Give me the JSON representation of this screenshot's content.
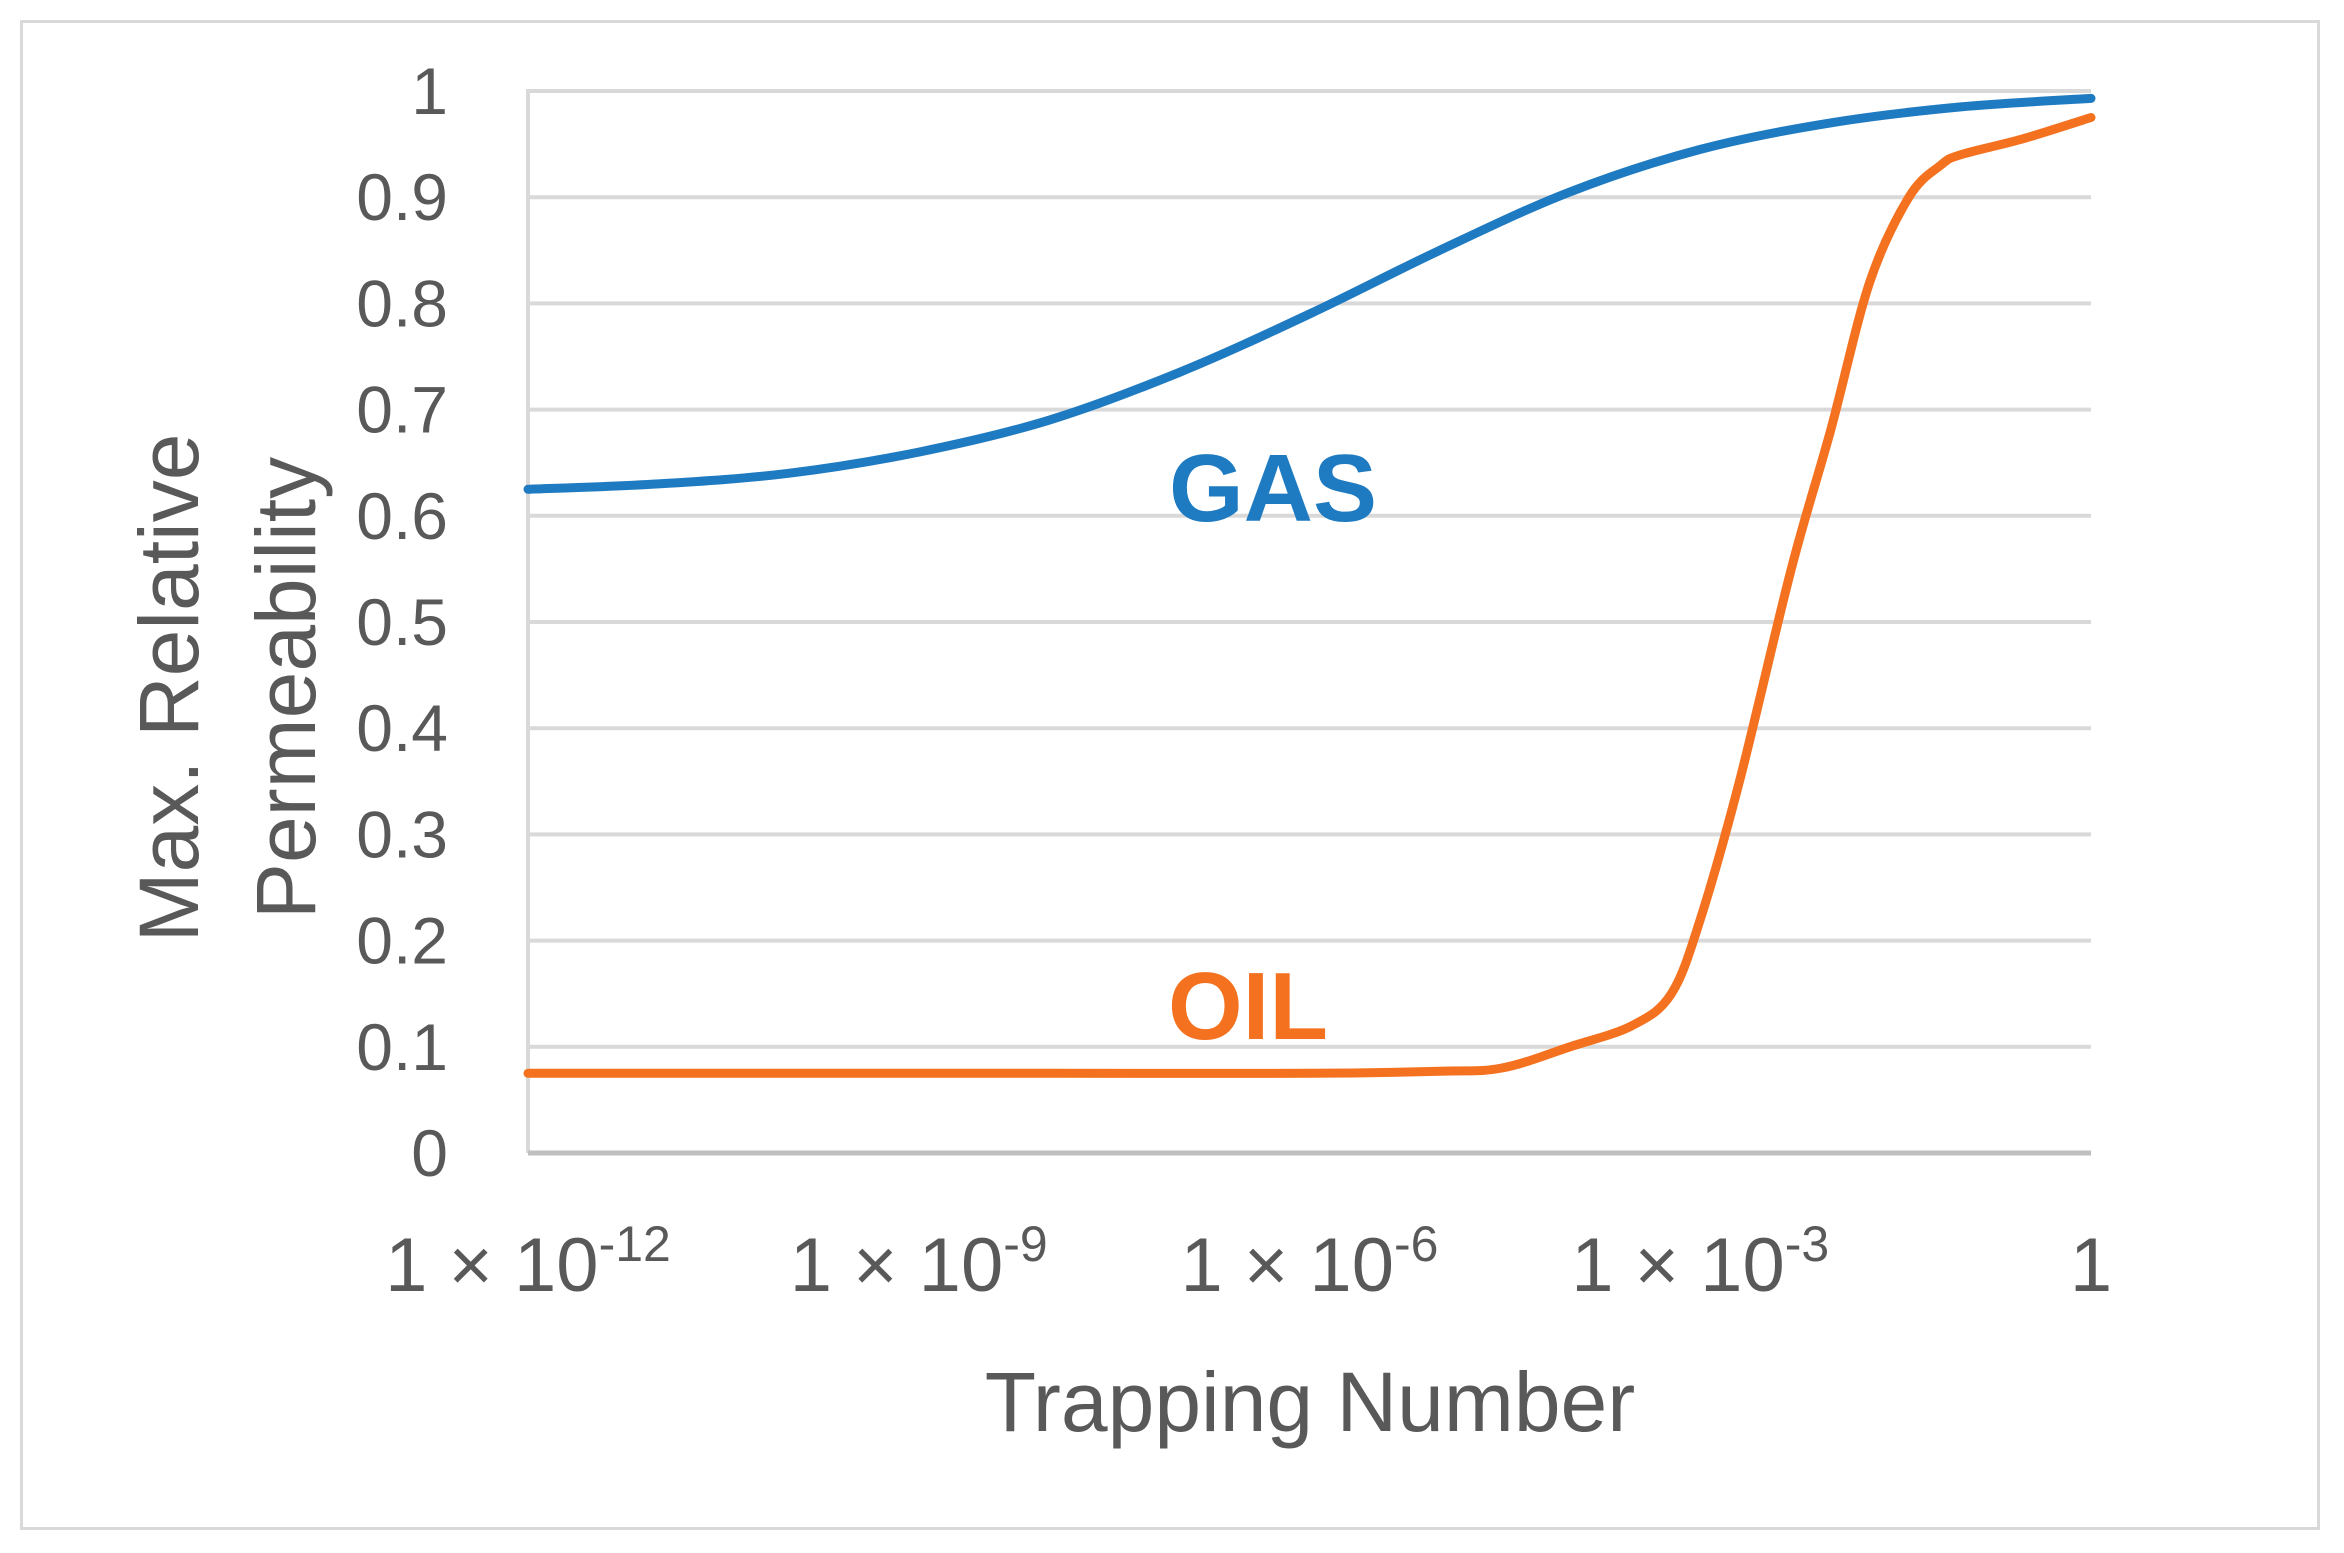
{
  "chart_data": {
    "type": "line",
    "title": "",
    "xlabel": "Trapping Number",
    "ylabel_lines": [
      "Max. Relative",
      "Permeability"
    ],
    "x_scale": "log",
    "x_ticks": [
      {
        "value": 1e-12,
        "mantissa": "1 × 10",
        "exponent": "-12"
      },
      {
        "value": 1e-09,
        "mantissa": "1 × 10",
        "exponent": "-9"
      },
      {
        "value": 1e-06,
        "mantissa": "1 × 10",
        "exponent": "-6"
      },
      {
        "value": 0.001,
        "mantissa": "1 × 10",
        "exponent": "-3"
      },
      {
        "value": 1,
        "mantissa": "1",
        "exponent": ""
      }
    ],
    "xlim": [
      1e-12,
      1
    ],
    "ylim": [
      0,
      1
    ],
    "y_ticks": [
      0,
      0.1,
      0.2,
      0.3,
      0.4,
      0.5,
      0.6,
      0.7,
      0.8,
      0.9,
      1
    ],
    "y_tick_labels": [
      "0",
      "0.1",
      "0.2",
      "0.3",
      "0.4",
      "0.5",
      "0.6",
      "0.7",
      "0.8",
      "0.9",
      "1"
    ],
    "grid": true,
    "legend": "none",
    "series": [
      {
        "name": "GAS",
        "color": "#1f7bc1",
        "x": [
          1e-12,
          1e-11,
          1e-10,
          1e-09,
          1e-08,
          1e-07,
          1e-06,
          1e-05,
          0.0001,
          0.001,
          0.01,
          0.1,
          1
        ],
        "y": [
          0.625,
          0.63,
          0.64,
          0.66,
          0.69,
          0.735,
          0.79,
          0.85,
          0.905,
          0.945,
          0.97,
          0.985,
          0.993
        ]
      },
      {
        "name": "OIL",
        "color": "#f4711f",
        "x": [
          1e-12,
          1e-10,
          1e-08,
          1e-06,
          1e-05,
          3e-05,
          0.0001,
          0.0003,
          0.0006,
          0.001,
          0.002,
          0.005,
          0.01,
          0.02,
          0.04,
          0.07,
          0.1,
          0.3,
          1
        ],
        "y": [
          0.075,
          0.075,
          0.075,
          0.075,
          0.077,
          0.08,
          0.1,
          0.12,
          0.15,
          0.22,
          0.35,
          0.55,
          0.68,
          0.82,
          0.9,
          0.93,
          0.94,
          0.955,
          0.975
        ]
      }
    ]
  }
}
